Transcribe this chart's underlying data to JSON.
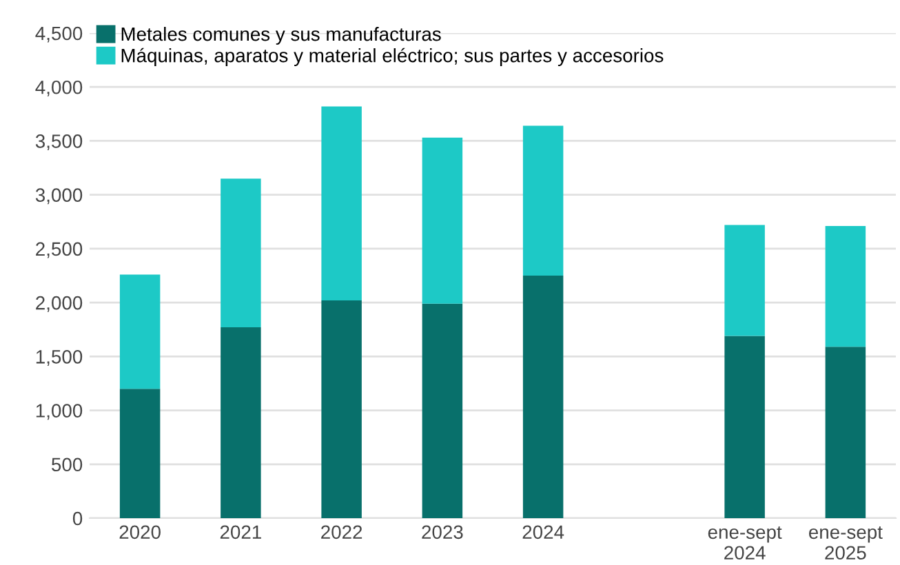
{
  "chart_data": {
    "type": "bar",
    "stacked": true,
    "categories": [
      "2020",
      "2021",
      "2022",
      "2023",
      "2024",
      null,
      "ene-sept\n2024",
      "ene-sept\n2025"
    ],
    "series": [
      {
        "name": "Metales comunes y sus manufacturas",
        "color": "#08706b",
        "values": [
          1200,
          1770,
          2020,
          1990,
          2250,
          null,
          1690,
          1590
        ]
      },
      {
        "name": "Máquinas, aparatos y material eléctrico; sus partes y accesorios",
        "color": "#1dc9c6",
        "values": [
          1060,
          1380,
          1800,
          1540,
          1390,
          null,
          1030,
          1120
        ]
      }
    ],
    "ylim": [
      0,
      4500
    ],
    "yticks": [
      {
        "value": 0,
        "label": "0"
      },
      {
        "value": 500,
        "label": "500"
      },
      {
        "value": 1000,
        "label": "1,000"
      },
      {
        "value": 1500,
        "label": "1,500"
      },
      {
        "value": 2000,
        "label": "2,000"
      },
      {
        "value": 2500,
        "label": "2,500"
      },
      {
        "value": 3000,
        "label": "3,000"
      },
      {
        "value": 3500,
        "label": "3,500"
      },
      {
        "value": 4000,
        "label": "4,000"
      },
      {
        "value": 4500,
        "label": "4,500"
      }
    ],
    "grid": "y",
    "legend": "top left"
  }
}
